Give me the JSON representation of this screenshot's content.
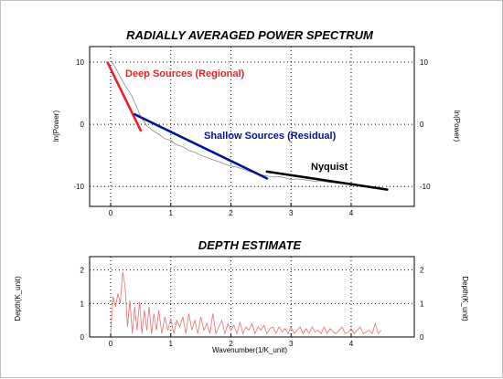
{
  "chart_data": [
    {
      "type": "line",
      "title": "RADIALLY AVERAGED POWER SPECTRUM",
      "xlabel": "",
      "ylabel": "ln(Power)",
      "ylabel_right": "ln(Power)",
      "xlim": [
        -0.35,
        5.05
      ],
      "ylim": [
        -13.2,
        12.5
      ],
      "x_ticks": [
        0,
        1,
        2,
        3,
        4
      ],
      "y_ticks": [
        10,
        0,
        -10
      ],
      "grid": true,
      "colors": {
        "spectrum": "#8c8c8c",
        "deep": "#e8202a",
        "shallow": "#00129a",
        "nyquist": "#000000"
      },
      "spectrum": {
        "name": "",
        "x": [
          0.0,
          0.05,
          0.1,
          0.15,
          0.2,
          0.25,
          0.3,
          0.35,
          0.4,
          0.45,
          0.5,
          0.6,
          0.7,
          0.8,
          0.9,
          1.0,
          1.1,
          1.2,
          1.3,
          1.4,
          1.5,
          1.6,
          1.7,
          1.8,
          1.9,
          2.0,
          2.1,
          2.2,
          2.3,
          2.4,
          2.5,
          2.6,
          2.7,
          2.8,
          2.9,
          3.0,
          3.1,
          3.2,
          3.3,
          3.4,
          3.5,
          3.6,
          3.7,
          3.8,
          3.9,
          4.0,
          4.1,
          4.2,
          4.3,
          4.4,
          4.5,
          4.6
        ],
        "values": [
          10.2,
          9.6,
          8.7,
          7.8,
          6.9,
          6.1,
          5.4,
          4.6,
          3.5,
          2.4,
          1.2,
          -0.2,
          -1.0,
          -1.6,
          -2.3,
          -2.6,
          -3.3,
          -3.6,
          -4.2,
          -4.5,
          -5.0,
          -5.3,
          -5.7,
          -6.0,
          -6.4,
          -6.7,
          -6.9,
          -7.2,
          -7.6,
          -7.8,
          -8.1,
          -8.3,
          -8.5,
          -8.4,
          -8.6,
          -8.9,
          -8.8,
          -8.9,
          -9.0,
          -9.2,
          -9.1,
          -9.3,
          -9.4,
          -9.5,
          -9.5,
          -9.7,
          -9.8,
          -9.9,
          -10.0,
          -10.1,
          -10.2,
          -10.4
        ]
      },
      "fit_lines": [
        {
          "label": "Deep Sources (Regional)",
          "x": [
            -0.05,
            0.5
          ],
          "values": [
            9.9,
            -1.0
          ]
        },
        {
          "label": "Shallow Sources (Residual)",
          "x": [
            0.4,
            2.6
          ],
          "values": [
            1.6,
            -8.7
          ]
        },
        {
          "label": "Nyquist",
          "x": [
            2.6,
            4.6
          ],
          "values": [
            -7.6,
            -10.5
          ]
        }
      ]
    },
    {
      "type": "line",
      "title": "DEPTH ESTIMATE",
      "xlabel": "Wavenumber(1/K_unit)",
      "ylabel": "Depth(K_unit)",
      "ylabel_right": "Depth(K_unit)",
      "xlim": [
        -0.35,
        5.05
      ],
      "ylim": [
        0,
        2.4
      ],
      "x_ticks": [
        0,
        1,
        2,
        3,
        4
      ],
      "y_ticks": [
        2,
        1,
        0
      ],
      "grid": true,
      "colors": {
        "depth": "#e87070"
      },
      "depth": {
        "name": "",
        "x": [
          0.0,
          0.04,
          0.08,
          0.12,
          0.16,
          0.2,
          0.24,
          0.28,
          0.32,
          0.36,
          0.4,
          0.44,
          0.48,
          0.52,
          0.56,
          0.6,
          0.64,
          0.68,
          0.72,
          0.76,
          0.8,
          0.85,
          0.9,
          0.95,
          1.0,
          1.05,
          1.1,
          1.15,
          1.2,
          1.25,
          1.3,
          1.35,
          1.4,
          1.45,
          1.5,
          1.55,
          1.6,
          1.65,
          1.7,
          1.75,
          1.8,
          1.85,
          1.9,
          1.95,
          2.0,
          2.05,
          2.1,
          2.15,
          2.2,
          2.25,
          2.3,
          2.35,
          2.4,
          2.45,
          2.5,
          2.55,
          2.6,
          2.65,
          2.7,
          2.75,
          2.8,
          2.85,
          2.9,
          2.95,
          3.0,
          3.05,
          3.1,
          3.15,
          3.2,
          3.25,
          3.3,
          3.35,
          3.4,
          3.45,
          3.5,
          3.55,
          3.6,
          3.65,
          3.7,
          3.75,
          3.8,
          3.85,
          3.9,
          3.95,
          4.0,
          4.05,
          4.1,
          4.15,
          4.2,
          4.25,
          4.3,
          4.35,
          4.4,
          4.45,
          4.5
        ],
        "values": [
          0.1,
          1.2,
          0.9,
          1.3,
          1.0,
          1.95,
          1.5,
          0.3,
          1.1,
          0.1,
          0.9,
          0.2,
          1.05,
          0.1,
          0.8,
          0.2,
          0.9,
          0.1,
          0.7,
          0.2,
          0.8,
          0.1,
          0.6,
          0.2,
          0.55,
          0.1,
          0.5,
          0.3,
          0.6,
          0.1,
          0.7,
          0.2,
          0.5,
          0.1,
          0.6,
          0.2,
          0.4,
          0.1,
          0.7,
          0.1,
          0.3,
          0.5,
          0.1,
          0.4,
          0.2,
          0.35,
          0.1,
          0.45,
          0.1,
          0.3,
          0.2,
          0.4,
          0.1,
          0.3,
          0.2,
          0.35,
          0.1,
          0.25,
          0.3,
          0.1,
          0.3,
          0.15,
          0.25,
          0.1,
          0.3,
          0.1,
          0.2,
          0.3,
          0.1,
          0.25,
          0.1,
          0.3,
          0.15,
          0.2,
          0.1,
          0.3,
          0.1,
          0.25,
          0.15,
          0.1,
          0.2,
          0.3,
          0.1,
          0.15,
          0.25,
          0.1,
          0.2,
          0.3,
          0.1,
          0.15,
          0.2,
          0.1,
          0.4,
          0.1,
          0.2
        ]
      }
    }
  ]
}
